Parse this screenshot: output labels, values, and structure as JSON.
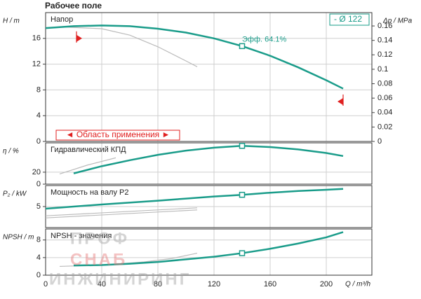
{
  "page_title": "Рабочее поле",
  "watermark": [
    "ПРОФ",
    "СНАБ",
    "ИНЖИНИРИНГ"
  ],
  "chart_data": [
    {
      "type": "line",
      "panel_label": "Напор",
      "ylabel": "H / m",
      "xlim": [
        0,
        232.5
      ],
      "xticks": [
        0,
        40,
        80,
        120,
        160,
        200
      ],
      "ylim": [
        0,
        20
      ],
      "yticks": [
        0,
        4,
        8,
        12,
        16
      ],
      "grid": true,
      "y2label": "Δp / MPa",
      "y2lim": [
        0,
        0.1785
      ],
      "y2ticks": [
        0,
        0.02,
        0.04,
        0.06,
        0.08,
        0.1,
        0.12,
        0.14,
        0.16
      ],
      "impeller_label": "- Ø 122",
      "efficiency_label": "Эфф. 64.1%",
      "range_label": "◄ Область применения ►",
      "series": [
        {
          "color": "#bbbbbb",
          "x": [
            10,
            40,
            60,
            80,
            100,
            108
          ],
          "values": [
            17.8,
            17.5,
            16.5,
            14.7,
            12.5,
            11.6
          ]
        },
        {
          "color": "#1a9c8a",
          "x": [
            0,
            20,
            40,
            60,
            80,
            100,
            120,
            140,
            160,
            180,
            200,
            212
          ],
          "values": [
            17.6,
            17.9,
            18.0,
            17.9,
            17.5,
            16.9,
            16.0,
            14.8,
            13.3,
            11.5,
            9.5,
            8.2
          ]
        }
      ],
      "operating_point": {
        "x": 140,
        "y": 14.8
      },
      "limit_markers": {
        "x": [
          22,
          212
        ],
        "y": [
          16,
          6.2
        ]
      }
    },
    {
      "type": "line",
      "panel_label": "Гидравлический КПД",
      "ylabel": "η / %",
      "xlim": [
        0,
        232.5
      ],
      "xticks": [
        0,
        40,
        80,
        120,
        160,
        200
      ],
      "ylim": [
        0,
        69
      ],
      "yticks": [
        0,
        20
      ],
      "grid": true,
      "series": [
        {
          "color": "#bbbbbb",
          "x": [
            10,
            30,
            50
          ],
          "values": [
            17,
            32,
            44
          ]
        },
        {
          "color": "#1a9c8a",
          "x": [
            20,
            40,
            60,
            80,
            100,
            120,
            140,
            160,
            180,
            200,
            212
          ],
          "values": [
            18,
            30,
            40,
            49,
            56,
            61,
            64,
            62,
            58,
            52,
            47
          ]
        }
      ],
      "operating_point": {
        "x": 140,
        "y": 64
      }
    },
    {
      "type": "line",
      "panel_label": "Мощность на валу P2",
      "ylabel": "P₂ / kW",
      "xlim": [
        0,
        232.5
      ],
      "xticks": [
        0,
        40,
        80,
        120,
        160,
        200
      ],
      "ylim": [
        0,
        10
      ],
      "yticks": [
        5
      ],
      "grid": true,
      "series": [
        {
          "color": "#bbbbbb",
          "x": [
            0,
            108
          ],
          "values": [
            2.3,
            4.2
          ]
        },
        {
          "color": "#bbbbbb",
          "x": [
            0,
            108
          ],
          "values": [
            2.8,
            4.7
          ]
        },
        {
          "color": "#1a9c8a",
          "x": [
            0,
            40,
            80,
            100,
            120,
            140,
            160,
            180,
            200,
            212
          ],
          "values": [
            4.5,
            5.5,
            6.4,
            6.9,
            7.4,
            7.8,
            8.3,
            8.7,
            9.0,
            9.2
          ]
        }
      ],
      "operating_point": {
        "x": 140,
        "y": 7.8
      }
    },
    {
      "type": "line",
      "panel_label": "NPSH - значения",
      "ylabel": "NPSH / m",
      "xlabel": "Q / m³/h",
      "xlim": [
        0,
        232.5
      ],
      "xticks": [
        0,
        40,
        80,
        120,
        160,
        200
      ],
      "ylim": [
        0,
        10.5
      ],
      "yticks": [
        0,
        4,
        8
      ],
      "grid": true,
      "series": [
        {
          "color": "#bbbbbb",
          "x": [
            10,
            40,
            70,
            90,
            108
          ],
          "values": [
            2.0,
            2.3,
            3.0,
            3.8,
            5.0
          ]
        },
        {
          "color": "#1a9c8a",
          "x": [
            20,
            40,
            60,
            80,
            100,
            120,
            140,
            160,
            180,
            200,
            212
          ],
          "values": [
            2.2,
            2.3,
            2.6,
            3.0,
            3.6,
            4.2,
            5.0,
            6.0,
            7.2,
            8.6,
            9.8
          ]
        }
      ],
      "operating_point": {
        "x": 140,
        "y": 5.0
      }
    }
  ]
}
